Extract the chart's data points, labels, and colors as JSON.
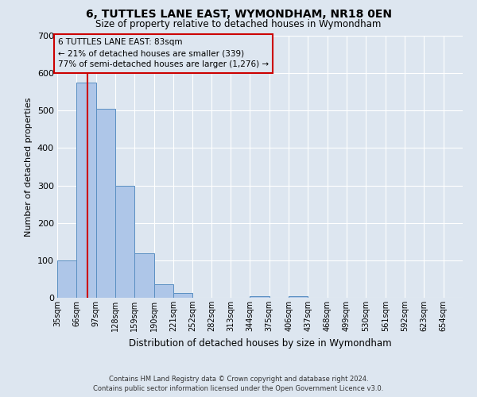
{
  "title": "6, TUTTLES LANE EAST, WYMONDHAM, NR18 0EN",
  "subtitle": "Size of property relative to detached houses in Wymondham",
  "xlabel": "Distribution of detached houses by size in Wymondham",
  "ylabel": "Number of detached properties",
  "footer_line1": "Contains HM Land Registry data © Crown copyright and database right 2024.",
  "footer_line2": "Contains public sector information licensed under the Open Government Licence v3.0.",
  "bin_labels": [
    "35sqm",
    "66sqm",
    "97sqm",
    "128sqm",
    "159sqm",
    "190sqm",
    "221sqm",
    "252sqm",
    "282sqm",
    "313sqm",
    "344sqm",
    "375sqm",
    "406sqm",
    "437sqm",
    "468sqm",
    "499sqm",
    "530sqm",
    "561sqm",
    "592sqm",
    "623sqm",
    "654sqm"
  ],
  "bar_values": [
    100,
    575,
    505,
    300,
    118,
    36,
    13,
    0,
    0,
    0,
    4,
    0,
    4,
    0,
    0,
    0,
    0,
    0,
    0,
    0,
    0
  ],
  "bar_color": "#aec6e8",
  "bar_edge_color": "#5a8fc2",
  "vline_x": 83,
  "bin_edges": [
    35,
    66,
    97,
    128,
    159,
    190,
    221,
    252,
    282,
    313,
    344,
    375,
    406,
    437,
    468,
    499,
    530,
    561,
    592,
    623,
    654
  ],
  "bin_width": 31,
  "ylim": [
    0,
    700
  ],
  "yticks": [
    0,
    100,
    200,
    300,
    400,
    500,
    600,
    700
  ],
  "annotation_box_text_line1": "6 TUTTLES LANE EAST: 83sqm",
  "annotation_box_text_line2": "← 21% of detached houses are smaller (339)",
  "annotation_box_text_line3": "77% of semi-detached houses are larger (1,276) →",
  "vline_color": "#cc0000",
  "background_color": "#dde6f0",
  "grid_color": "#ffffff",
  "ann_box_edge_color": "#cc0000"
}
